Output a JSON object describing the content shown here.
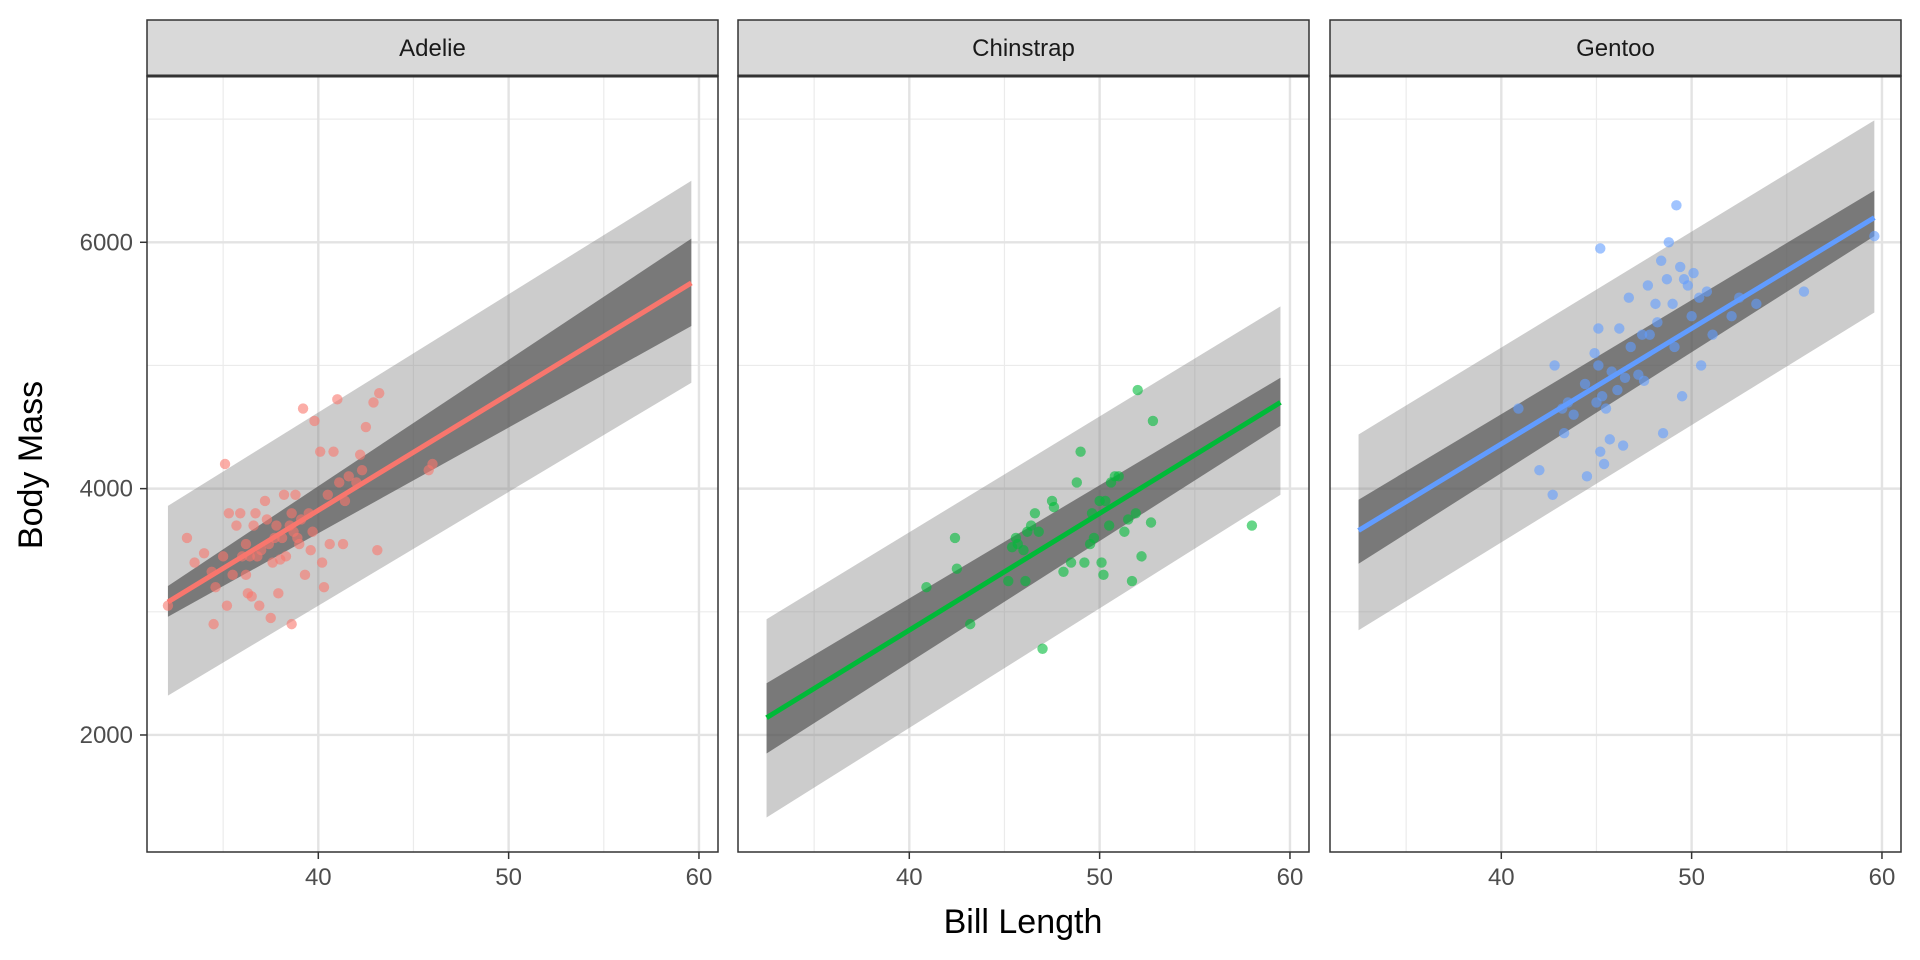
{
  "chart_data": {
    "type": "scatter",
    "facet_by": "species",
    "xlabel": "Bill Length",
    "ylabel": "Body Mass",
    "xlim": [
      31,
      61
    ],
    "ylim": [
      1050,
      7350
    ],
    "x_ticks": [
      40,
      50,
      60
    ],
    "y_ticks": [
      2000,
      4000,
      6000
    ],
    "grid": true,
    "panels": [
      {
        "name": "Adelie",
        "color": "#F8766D",
        "trend": {
          "x": [
            32.1,
            59.6
          ],
          "y": [
            3080,
            5670
          ]
        },
        "confidence_band": {
          "x": [
            32.1,
            59.6
          ],
          "lower": [
            2960,
            5320
          ],
          "upper": [
            3210,
            6030
          ]
        },
        "prediction_band": {
          "x": [
            32.1,
            59.6
          ],
          "lower": [
            2320,
            4860
          ],
          "upper": [
            3860,
            6500
          ]
        },
        "points": [
          [
            32.1,
            3050
          ],
          [
            33.1,
            3600
          ],
          [
            33.5,
            3400
          ],
          [
            34.0,
            3475
          ],
          [
            34.4,
            3325
          ],
          [
            34.5,
            2900
          ],
          [
            34.6,
            3200
          ],
          [
            35.0,
            3450
          ],
          [
            35.1,
            4200
          ],
          [
            35.2,
            3050
          ],
          [
            35.3,
            3800
          ],
          [
            35.5,
            3300
          ],
          [
            35.7,
            3700
          ],
          [
            35.9,
            3800
          ],
          [
            36.0,
            3450
          ],
          [
            36.2,
            3550
          ],
          [
            36.2,
            3300
          ],
          [
            36.3,
            3150
          ],
          [
            36.4,
            3450
          ],
          [
            36.5,
            3125
          ],
          [
            36.6,
            3700
          ],
          [
            36.7,
            3800
          ],
          [
            36.8,
            3450
          ],
          [
            36.9,
            3050
          ],
          [
            37.0,
            3500
          ],
          [
            37.2,
            3900
          ],
          [
            37.3,
            3750
          ],
          [
            37.4,
            3550
          ],
          [
            37.5,
            2950
          ],
          [
            37.6,
            3400
          ],
          [
            37.7,
            3600
          ],
          [
            37.8,
            3700
          ],
          [
            37.9,
            3150
          ],
          [
            38.0,
            3425
          ],
          [
            38.1,
            3600
          ],
          [
            38.2,
            3950
          ],
          [
            38.3,
            3450
          ],
          [
            38.5,
            3700
          ],
          [
            38.6,
            3800
          ],
          [
            38.6,
            2900
          ],
          [
            38.7,
            3650
          ],
          [
            38.8,
            3950
          ],
          [
            38.9,
            3600
          ],
          [
            39.0,
            3550
          ],
          [
            39.1,
            3750
          ],
          [
            39.2,
            4650
          ],
          [
            39.3,
            3300
          ],
          [
            39.5,
            3800
          ],
          [
            39.6,
            3500
          ],
          [
            39.7,
            3650
          ],
          [
            39.8,
            4550
          ],
          [
            40.1,
            4300
          ],
          [
            40.2,
            3400
          ],
          [
            40.3,
            3200
          ],
          [
            40.5,
            3950
          ],
          [
            40.6,
            3550
          ],
          [
            40.8,
            4300
          ],
          [
            41.0,
            4725
          ],
          [
            41.1,
            4050
          ],
          [
            41.3,
            3550
          ],
          [
            41.4,
            3900
          ],
          [
            41.6,
            4100
          ],
          [
            42.0,
            4050
          ],
          [
            42.2,
            4275
          ],
          [
            42.3,
            4150
          ],
          [
            42.5,
            4500
          ],
          [
            42.9,
            4700
          ],
          [
            43.1,
            3500
          ],
          [
            43.2,
            4775
          ],
          [
            45.8,
            4150
          ],
          [
            46.0,
            4200
          ]
        ]
      },
      {
        "name": "Chinstrap",
        "color": "#00BA38",
        "trend": {
          "x": [
            32.5,
            59.5
          ],
          "y": [
            2140,
            4700
          ]
        },
        "confidence_band": {
          "x": [
            32.5,
            59.5
          ],
          "lower": [
            1850,
            4510
          ],
          "upper": [
            2420,
            4900
          ]
        },
        "prediction_band": {
          "x": [
            32.5,
            59.5
          ],
          "lower": [
            1330,
            3950
          ],
          "upper": [
            2940,
            5480
          ]
        },
        "points": [
          [
            40.9,
            3200
          ],
          [
            42.4,
            3600
          ],
          [
            42.5,
            3350
          ],
          [
            43.2,
            2900
          ],
          [
            45.2,
            3250
          ],
          [
            45.4,
            3525
          ],
          [
            45.6,
            3600
          ],
          [
            45.7,
            3550
          ],
          [
            46.0,
            3500
          ],
          [
            46.1,
            3250
          ],
          [
            46.2,
            3650
          ],
          [
            46.4,
            3700
          ],
          [
            46.6,
            3800
          ],
          [
            46.8,
            3650
          ],
          [
            47.0,
            2700
          ],
          [
            47.5,
            3900
          ],
          [
            47.6,
            3850
          ],
          [
            48.1,
            3325
          ],
          [
            48.5,
            3400
          ],
          [
            48.8,
            4050
          ],
          [
            49.0,
            4300
          ],
          [
            49.2,
            3400
          ],
          [
            49.5,
            3550
          ],
          [
            49.6,
            3800
          ],
          [
            49.7,
            3600
          ],
          [
            50.0,
            3900
          ],
          [
            50.1,
            3400
          ],
          [
            50.2,
            3300
          ],
          [
            50.3,
            3900
          ],
          [
            50.5,
            3700
          ],
          [
            50.6,
            4050
          ],
          [
            50.8,
            4100
          ],
          [
            51.0,
            4100
          ],
          [
            51.3,
            3650
          ],
          [
            51.5,
            3750
          ],
          [
            51.7,
            3250
          ],
          [
            51.9,
            3800
          ],
          [
            52.0,
            4800
          ],
          [
            52.2,
            3450
          ],
          [
            52.7,
            3725
          ],
          [
            52.8,
            4550
          ],
          [
            58.0,
            3700
          ]
        ]
      },
      {
        "name": "Gentoo",
        "color": "#619CFF",
        "trend": {
          "x": [
            32.5,
            59.6
          ],
          "y": [
            3660,
            6200
          ]
        },
        "confidence_band": {
          "x": [
            32.5,
            59.6
          ],
          "lower": [
            3390,
            6050
          ],
          "upper": [
            3910,
            6420
          ]
        },
        "prediction_band": {
          "x": [
            32.5,
            59.6
          ],
          "lower": [
            2850,
            5430
          ],
          "upper": [
            4440,
            6990
          ]
        },
        "points": [
          [
            40.9,
            4650
          ],
          [
            42.0,
            4150
          ],
          [
            42.7,
            3950
          ],
          [
            42.8,
            5000
          ],
          [
            43.2,
            4650
          ],
          [
            43.3,
            4450
          ],
          [
            43.5,
            4700
          ],
          [
            43.8,
            4600
          ],
          [
            44.4,
            4850
          ],
          [
            44.5,
            4100
          ],
          [
            44.9,
            5100
          ],
          [
            45.0,
            4700
          ],
          [
            45.1,
            5000
          ],
          [
            45.1,
            5300
          ],
          [
            45.2,
            5950
          ],
          [
            45.2,
            4300
          ],
          [
            45.3,
            4750
          ],
          [
            45.4,
            4200
          ],
          [
            45.5,
            4650
          ],
          [
            45.7,
            4400
          ],
          [
            45.8,
            4950
          ],
          [
            46.1,
            4800
          ],
          [
            46.2,
            5300
          ],
          [
            46.4,
            4350
          ],
          [
            46.5,
            4900
          ],
          [
            46.7,
            5550
          ],
          [
            46.8,
            5150
          ],
          [
            47.2,
            4925
          ],
          [
            47.4,
            5250
          ],
          [
            47.5,
            4875
          ],
          [
            47.7,
            5650
          ],
          [
            47.8,
            5250
          ],
          [
            48.1,
            5500
          ],
          [
            48.2,
            5350
          ],
          [
            48.4,
            5850
          ],
          [
            48.5,
            4450
          ],
          [
            48.7,
            5700
          ],
          [
            48.8,
            6000
          ],
          [
            49.0,
            5500
          ],
          [
            49.1,
            5150
          ],
          [
            49.2,
            6300
          ],
          [
            49.4,
            5800
          ],
          [
            49.5,
            4750
          ],
          [
            49.6,
            5700
          ],
          [
            49.8,
            5650
          ],
          [
            50.0,
            5400
          ],
          [
            50.1,
            5750
          ],
          [
            50.4,
            5550
          ],
          [
            50.5,
            5000
          ],
          [
            50.8,
            5600
          ],
          [
            51.1,
            5250
          ],
          [
            52.1,
            5400
          ],
          [
            52.5,
            5550
          ],
          [
            53.4,
            5500
          ],
          [
            55.9,
            5600
          ],
          [
            59.6,
            6050
          ]
        ]
      }
    ]
  }
}
